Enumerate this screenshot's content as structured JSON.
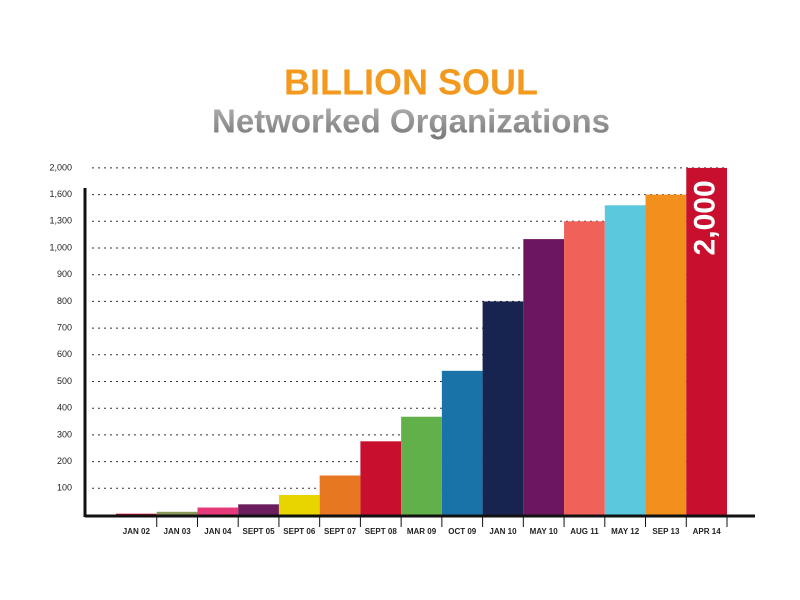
{
  "chart_data": {
    "type": "bar",
    "title": "BILLION SOUL",
    "subtitle": "Networked Organizations",
    "categories": [
      "JAN 02",
      "JAN 03",
      "JAN 04",
      "SEPT 05",
      "SEPT 06",
      "SEPT 07",
      "SEPT 08",
      "MAR 09",
      "OCT 09",
      "JAN 10",
      "MAY 10",
      "AUG 11",
      "MAY 12",
      "SEP 13",
      "APR 14"
    ],
    "values": [
      5,
      12,
      28,
      40,
      75,
      148,
      276,
      368,
      540,
      800,
      1100,
      1300,
      1480,
      1600,
      2000
    ],
    "value_labels": [
      null,
      null,
      null,
      null,
      null,
      null,
      null,
      null,
      null,
      null,
      null,
      null,
      null,
      null,
      "2,000"
    ],
    "colors": [
      "#c8102e",
      "#8a9a5b",
      "#e6397a",
      "#6b1d5e",
      "#e8d500",
      "#e87722",
      "#c8102e",
      "#62b04a",
      "#1a73a8",
      "#16244f",
      "#6d1660",
      "#ef6159",
      "#5bc8de",
      "#f3901d",
      "#c8102e"
    ],
    "ylim": [
      0,
      2000
    ],
    "yticks": [
      100,
      200,
      300,
      400,
      500,
      600,
      700,
      800,
      900,
      {
        "value": 1000,
        "label": "1,000"
      },
      {
        "value": 1300,
        "label": "1,300"
      },
      {
        "value": 1600,
        "label": "1,600"
      },
      {
        "value": 2000,
        "label": "2,000"
      }
    ],
    "grid": true
  }
}
